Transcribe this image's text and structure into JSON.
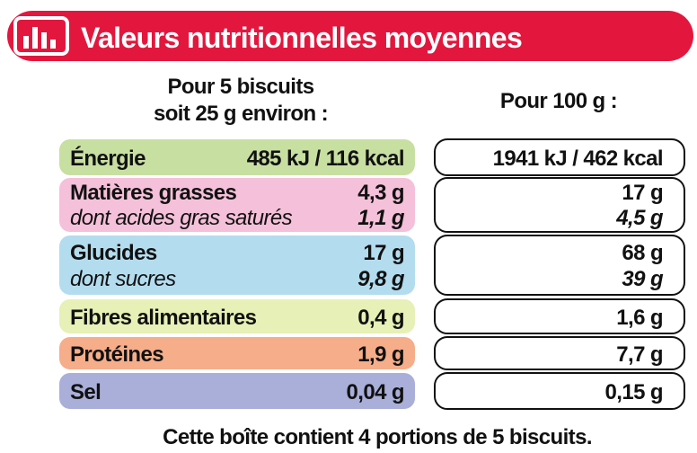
{
  "header": {
    "title": "Valeurs nutritionnelles moyennes"
  },
  "columns": {
    "portion": [
      "Pour 5 biscuits",
      "soit 25 g environ :"
    ],
    "per100": "Pour 100 g :"
  },
  "rows": [
    {
      "label": "Énergie",
      "portion": "485 kJ / 116 kcal",
      "per100": "1941 kJ / 462 kcal"
    },
    {
      "label": "Matières grasses",
      "portion": "4,3 g",
      "per100": "17 g",
      "sub": {
        "label": "dont acides gras saturés",
        "portion": "1,1 g",
        "per100": "4,5 g"
      }
    },
    {
      "label": "Glucides",
      "portion": "17 g",
      "per100": "68 g",
      "sub": {
        "label": "dont sucres",
        "portion": "9,8 g",
        "per100": "39 g"
      }
    },
    {
      "label": "Fibres alimentaires",
      "portion": "0,4 g",
      "per100": "1,6 g"
    },
    {
      "label": "Protéines",
      "portion": "1,9 g",
      "per100": "7,7 g"
    },
    {
      "label": "Sel",
      "portion": "0,04 g",
      "per100": "0,15 g"
    }
  ],
  "footer": "Cette boîte contient 4 portions de 5 biscuits."
}
